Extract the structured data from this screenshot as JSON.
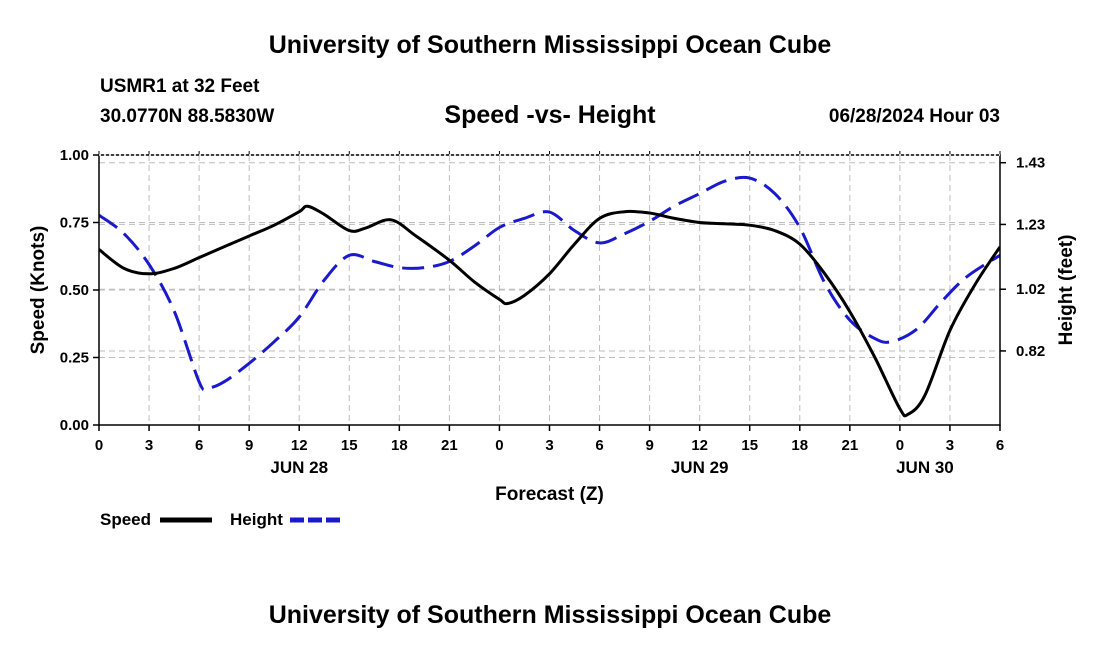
{
  "header": {
    "title": "University of Southern Mississippi Ocean Cube",
    "station": "USMR1 at 32 Feet",
    "coords": "30.0770N  88.5830W",
    "datetime": "06/28/2024 Hour 03"
  },
  "footer": {
    "title": "University of Southern Mississippi Ocean Cube"
  },
  "chart_data": {
    "type": "line",
    "title": "Speed -vs- Height",
    "xlabel": "Forecast (Z)",
    "ylabel": "Speed (Knots)",
    "y2label": "Height (feet)",
    "xlim": [
      0,
      54
    ],
    "ylim": [
      0,
      1
    ],
    "y2lim": [
      0.58,
      1.455
    ],
    "x_ticks": [
      0,
      3,
      6,
      9,
      12,
      15,
      18,
      21,
      24,
      27,
      30,
      33,
      36,
      39,
      42,
      45,
      48,
      51,
      54
    ],
    "x_tick_labels": [
      "0",
      "3",
      "6",
      "9",
      "12",
      "15",
      "18",
      "21",
      "0",
      "3",
      "6",
      "9",
      "12",
      "15",
      "18",
      "21",
      "0",
      "3",
      "6"
    ],
    "y_ticks": [
      0,
      0.25,
      0.5,
      0.75,
      1.0
    ],
    "y_tick_labels": [
      "0.00",
      "0.25",
      "0.50",
      "0.75",
      "1.00"
    ],
    "y2_ticks": [
      0.82,
      1.02,
      1.23,
      1.43
    ],
    "y2_tick_labels": [
      "0.82",
      "1.02",
      "1.23",
      "1.43"
    ],
    "date_labels": [
      {
        "text": "JUN 28",
        "x": 12
      },
      {
        "text": "JUN 29",
        "x": 36
      },
      {
        "text": "JUN 30",
        "x": 49.5
      }
    ],
    "grid": true,
    "series": [
      {
        "name": "Speed",
        "axis": "left",
        "color": "#000000",
        "dash": "solid",
        "x": [
          0,
          1.5,
          3,
          4.5,
          6,
          7.5,
          9,
          10.5,
          12,
          12.5,
          13.5,
          15,
          16,
          17.5,
          19,
          21,
          22.5,
          24,
          24.5,
          25.5,
          27,
          28.5,
          30,
          31.5,
          33,
          34.5,
          36,
          37.5,
          39,
          40.5,
          42,
          43.5,
          45,
          46.5,
          48,
          48.5,
          49.5,
          51,
          52.5,
          54
        ],
        "values": [
          0.65,
          0.58,
          0.56,
          0.58,
          0.62,
          0.66,
          0.7,
          0.74,
          0.79,
          0.81,
          0.78,
          0.72,
          0.73,
          0.76,
          0.7,
          0.61,
          0.53,
          0.465,
          0.45,
          0.48,
          0.56,
          0.67,
          0.765,
          0.79,
          0.785,
          0.765,
          0.75,
          0.745,
          0.74,
          0.72,
          0.67,
          0.56,
          0.42,
          0.25,
          0.06,
          0.04,
          0.11,
          0.35,
          0.52,
          0.66
        ]
      },
      {
        "name": "Height",
        "axis": "right",
        "color": "#1a1acc",
        "dash": "long-dash",
        "x": [
          0,
          1.5,
          3,
          4.5,
          6,
          6.5,
          7.5,
          9,
          10.5,
          12,
          13.5,
          15,
          16.5,
          18,
          19.5,
          21,
          22.5,
          24,
          25.5,
          27,
          28.5,
          30,
          31.5,
          33,
          34.5,
          36,
          37.5,
          39,
          40.5,
          42,
          43.5,
          45,
          46.5,
          47.5,
          49,
          50.5,
          52,
          54
        ],
        "values": [
          1.26,
          1.2,
          1.1,
          0.95,
          0.72,
          0.7,
          0.72,
          0.78,
          0.85,
          0.93,
          1.05,
          1.13,
          1.11,
          1.09,
          1.09,
          1.11,
          1.16,
          1.22,
          1.25,
          1.27,
          1.21,
          1.17,
          1.2,
          1.24,
          1.29,
          1.33,
          1.37,
          1.38,
          1.33,
          1.22,
          1.04,
          0.92,
          0.86,
          0.85,
          0.89,
          0.98,
          1.06,
          1.13
        ]
      }
    ],
    "legend": {
      "position": "bottom-left",
      "items": [
        {
          "label": "Speed",
          "color": "#000000",
          "dash": "solid"
        },
        {
          "label": "Height",
          "color": "#1a1acc",
          "dash": "long-dash"
        }
      ]
    }
  }
}
